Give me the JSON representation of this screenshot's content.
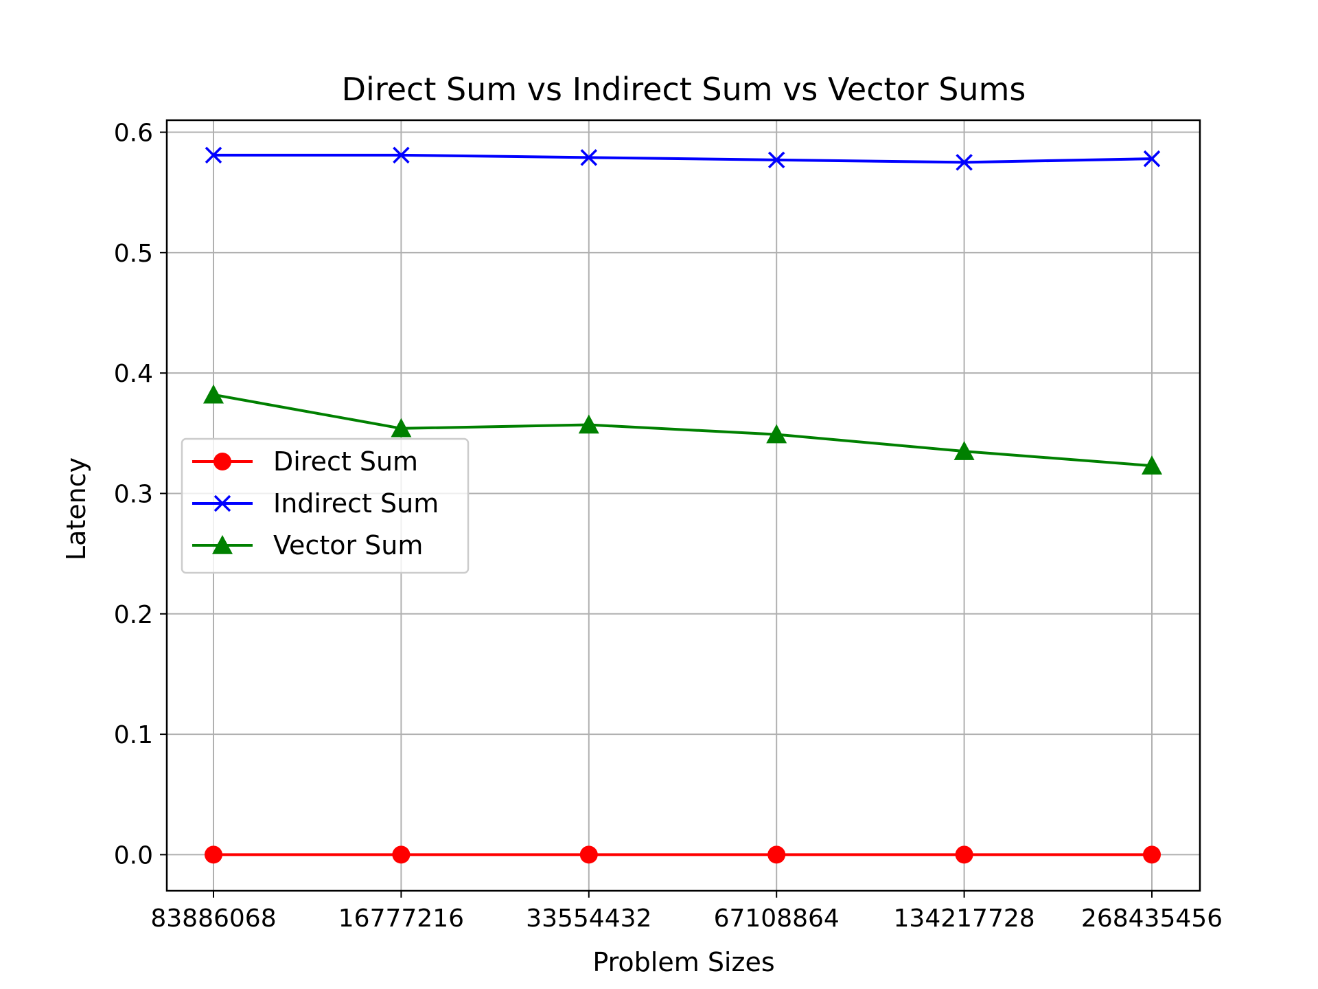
{
  "chart_data": {
    "type": "line",
    "title": "Direct Sum vs Indirect Sum vs Vector Sums",
    "xlabel": "Problem Sizes",
    "ylabel": "Latency",
    "categories": [
      "83886068",
      "16777216",
      "33554432",
      "67108864",
      "134217728",
      "268435456"
    ],
    "ylim": [
      -0.03,
      0.61
    ],
    "yticks": [
      "0.0",
      "0.1",
      "0.2",
      "0.3",
      "0.4",
      "0.5",
      "0.6"
    ],
    "grid": true,
    "legend_position": "center-left",
    "series": [
      {
        "name": "Direct Sum",
        "color": "#ff0000",
        "marker": "circle",
        "values": [
          0.0,
          0.0,
          0.0,
          0.0,
          0.0,
          0.0
        ]
      },
      {
        "name": "Indirect Sum",
        "color": "#0000ff",
        "marker": "x",
        "values": [
          0.581,
          0.581,
          0.579,
          0.577,
          0.575,
          0.578
        ]
      },
      {
        "name": "Vector Sum",
        "color": "#008000",
        "marker": "triangle",
        "values": [
          0.382,
          0.354,
          0.357,
          0.349,
          0.335,
          0.323
        ]
      }
    ]
  }
}
